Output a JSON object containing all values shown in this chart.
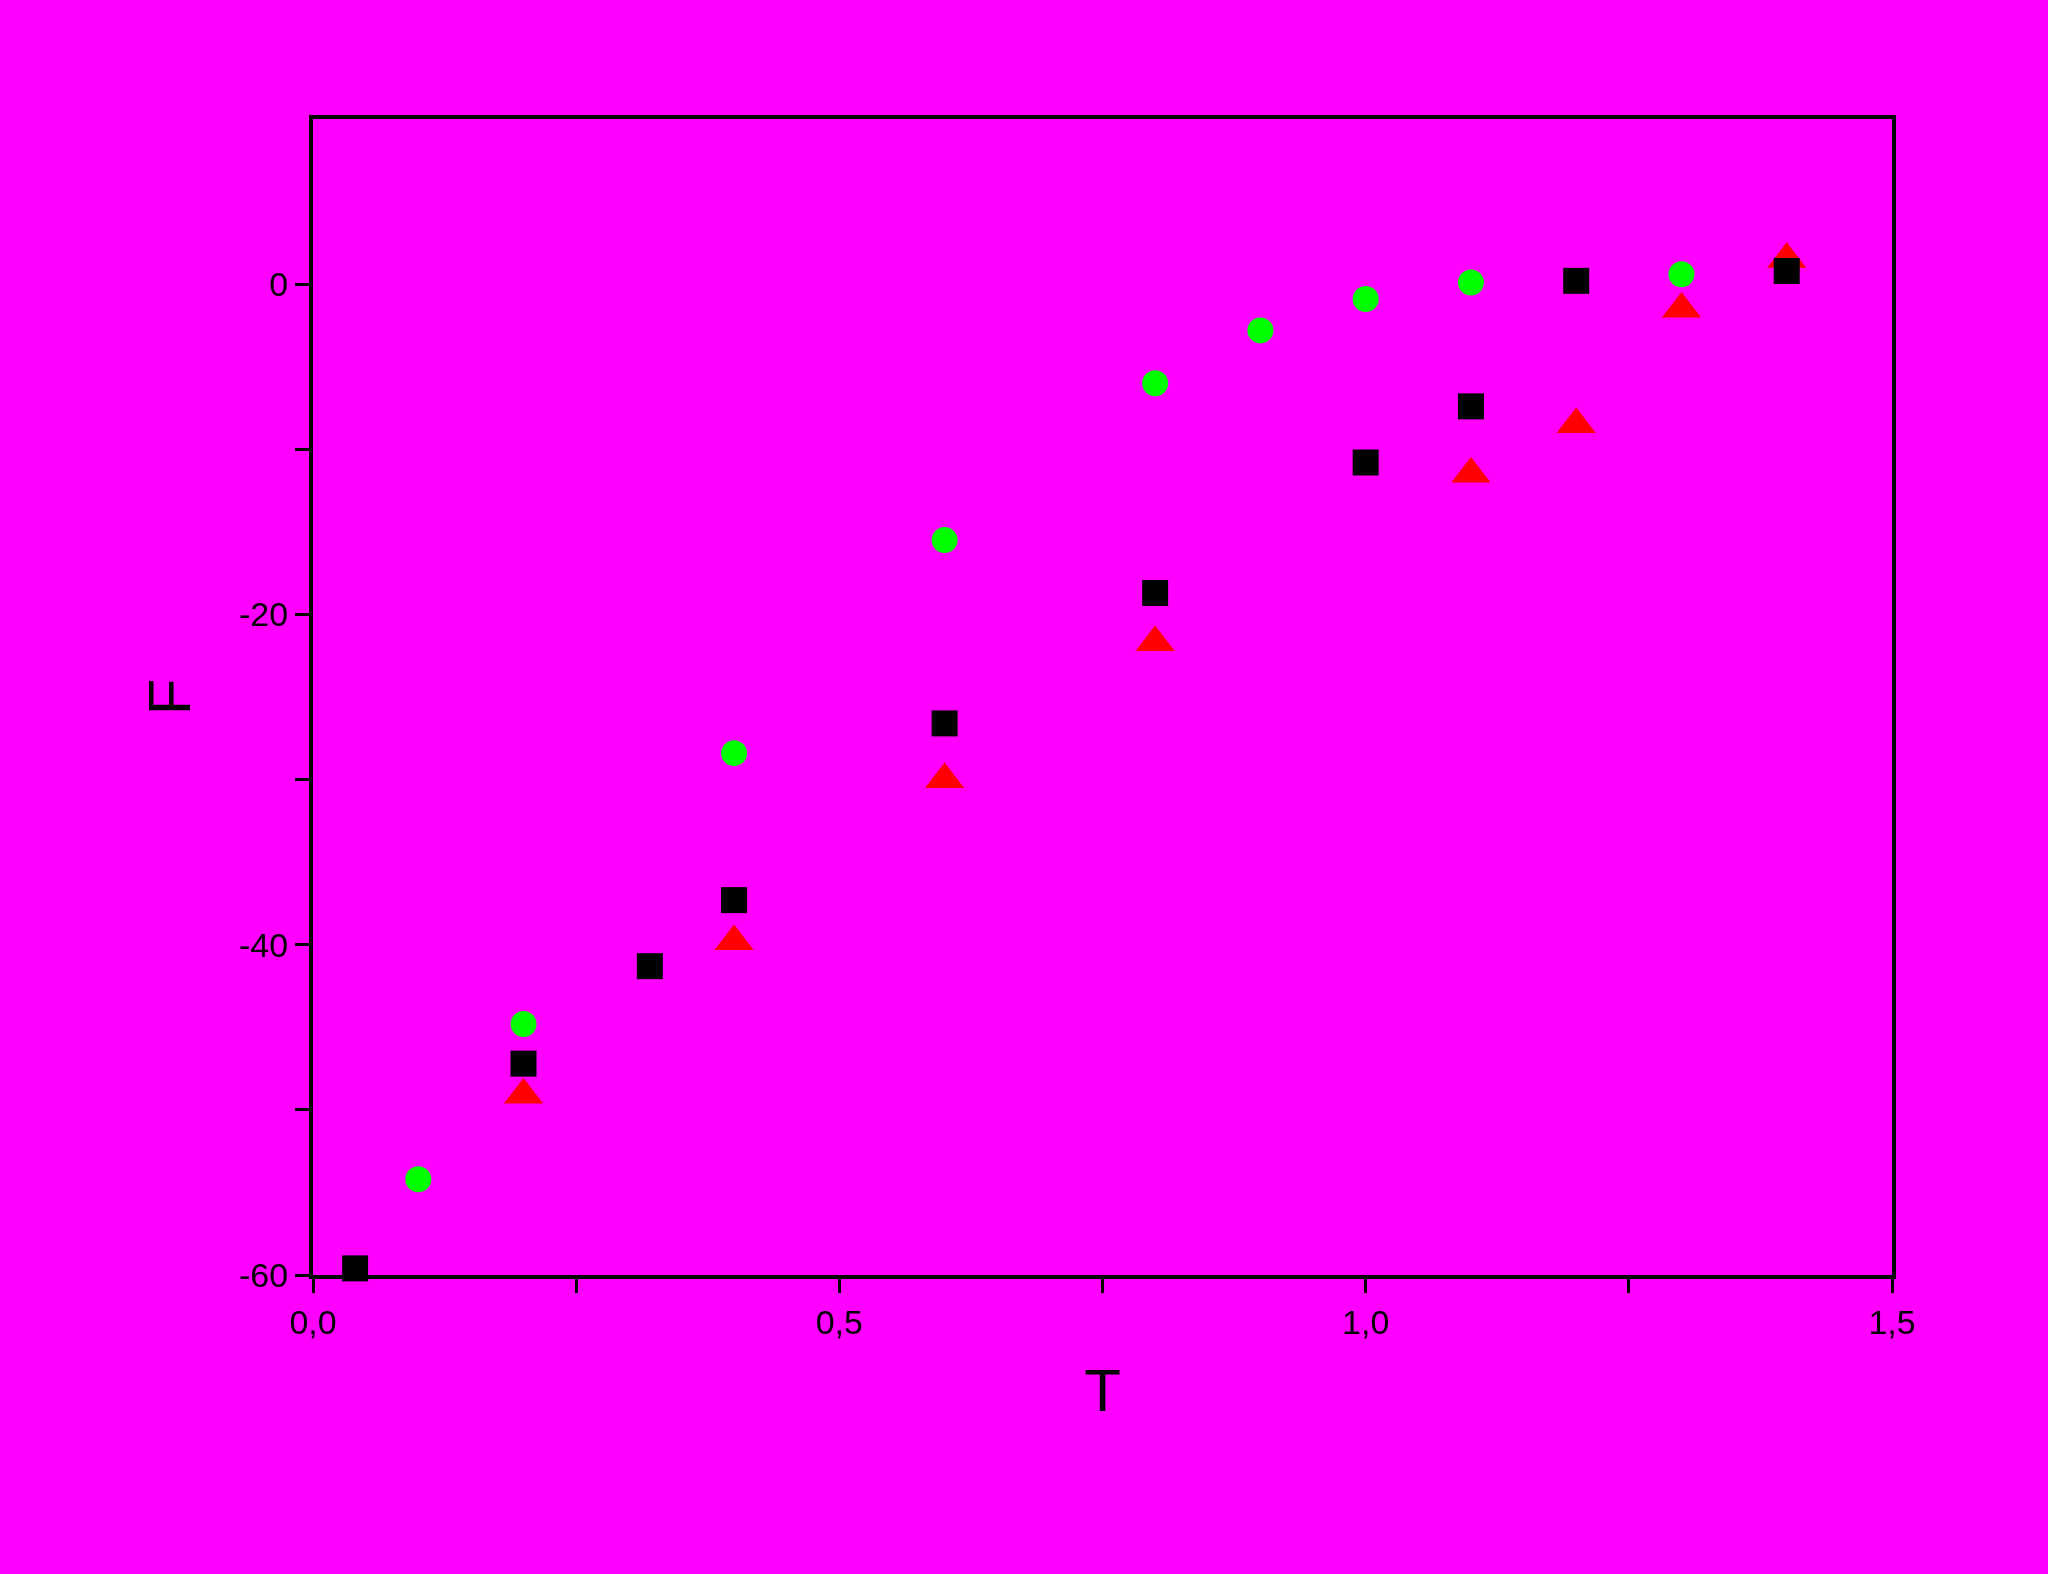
{
  "chart_data": {
    "type": "scatter",
    "xlabel": "T",
    "ylabel": "F",
    "xlim": [
      0,
      1.5
    ],
    "ylim": [
      -60,
      10
    ],
    "xticks": [
      {
        "value": 0,
        "label": "0,0"
      },
      {
        "value": 0.25,
        "label": null
      },
      {
        "value": 0.5,
        "label": "0,5"
      },
      {
        "value": 0.75,
        "label": null
      },
      {
        "value": 1.0,
        "label": "1,0"
      },
      {
        "value": 1.25,
        "label": null
      },
      {
        "value": 1.5,
        "label": "1,5"
      }
    ],
    "yticks": [
      -60,
      {
        "value": -50,
        "label": null
      },
      -40,
      {
        "value": -30,
        "label": null
      },
      -20,
      {
        "value": -10,
        "label": null
      },
      0
    ],
    "grid": false,
    "legend": false,
    "series": [
      {
        "color": "#000000",
        "marker": "square",
        "x": [
          0.04,
          0.2,
          0.32,
          0.4,
          0.6,
          0.8,
          1.0,
          1.1,
          1.2,
          1.4
        ],
        "values": [
          -59.6,
          -47.2,
          -41.3,
          -37.3,
          -26.6,
          -18.7,
          -10.8,
          -7.4,
          0.2,
          0.8
        ]
      },
      {
        "color": "#00ff00",
        "marker": "circle",
        "x": [
          0.1,
          0.2,
          0.4,
          0.6,
          0.8,
          0.9,
          1.0,
          1.1,
          1.3
        ],
        "values": [
          -54.2,
          -44.8,
          -28.4,
          -15.5,
          -6.0,
          -2.8,
          -0.9,
          0.1,
          0.6
        ]
      },
      {
        "color": "#ff0000",
        "marker": "triangle",
        "x": [
          0.2,
          0.4,
          0.6,
          0.8,
          1.1,
          1.2,
          1.3,
          1.4
        ],
        "values": [
          -49.1,
          -39.8,
          -30.0,
          -21.7,
          -11.5,
          -8.5,
          -1.5,
          1.5
        ]
      }
    ]
  }
}
